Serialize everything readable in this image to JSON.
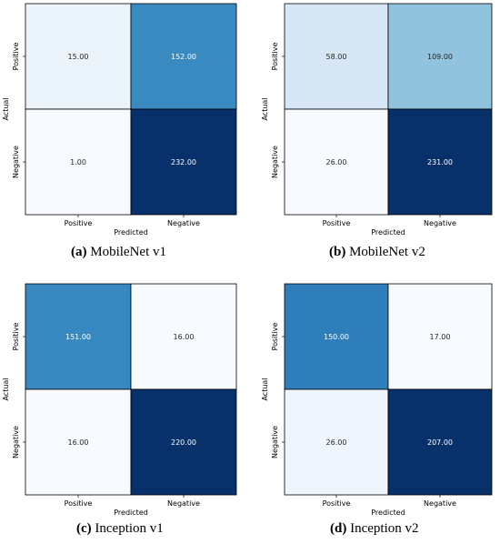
{
  "chart_data": [
    {
      "type": "heatmap",
      "panel_tag": "(a)",
      "caption": "MobileNet v1",
      "xlabel": "Predicted",
      "ylabel": "Actual",
      "x_categories": [
        "Positive",
        "Negative"
      ],
      "y_categories": [
        "Positive",
        "Negative"
      ],
      "values": [
        [
          15.0,
          152.0
        ],
        [
          1.0,
          232.0
        ]
      ],
      "value_labels": [
        [
          "15.00",
          "152.00"
        ],
        [
          "1.00",
          "232.00"
        ]
      ],
      "colormap": "Blues"
    },
    {
      "type": "heatmap",
      "panel_tag": "(b)",
      "caption": "MobileNet v2",
      "xlabel": "Predicted",
      "ylabel": "Actual",
      "x_categories": [
        "Positive",
        "Negative"
      ],
      "y_categories": [
        "Positive",
        "Negative"
      ],
      "values": [
        [
          58.0,
          109.0
        ],
        [
          26.0,
          231.0
        ]
      ],
      "value_labels": [
        [
          "58.00",
          "109.00"
        ],
        [
          "26.00",
          "231.00"
        ]
      ],
      "colormap": "Blues"
    },
    {
      "type": "heatmap",
      "panel_tag": "(c)",
      "caption": "Inception v1",
      "xlabel": "Predicted",
      "ylabel": "Actual",
      "x_categories": [
        "Positive",
        "Negative"
      ],
      "y_categories": [
        "Positive",
        "Negative"
      ],
      "values": [
        [
          151.0,
          16.0
        ],
        [
          16.0,
          220.0
        ]
      ],
      "value_labels": [
        [
          "151.00",
          "16.00"
        ],
        [
          "16.00",
          "220.00"
        ]
      ],
      "colormap": "Blues"
    },
    {
      "type": "heatmap",
      "panel_tag": "(d)",
      "caption": "Inception v2",
      "xlabel": "Predicted",
      "ylabel": "Actual",
      "x_categories": [
        "Positive",
        "Negative"
      ],
      "y_categories": [
        "Positive",
        "Negative"
      ],
      "values": [
        [
          150.0,
          17.0
        ],
        [
          26.0,
          207.0
        ]
      ],
      "value_labels": [
        [
          "150.00",
          "17.00"
        ],
        [
          "26.00",
          "207.00"
        ]
      ],
      "colormap": "Blues"
    }
  ]
}
